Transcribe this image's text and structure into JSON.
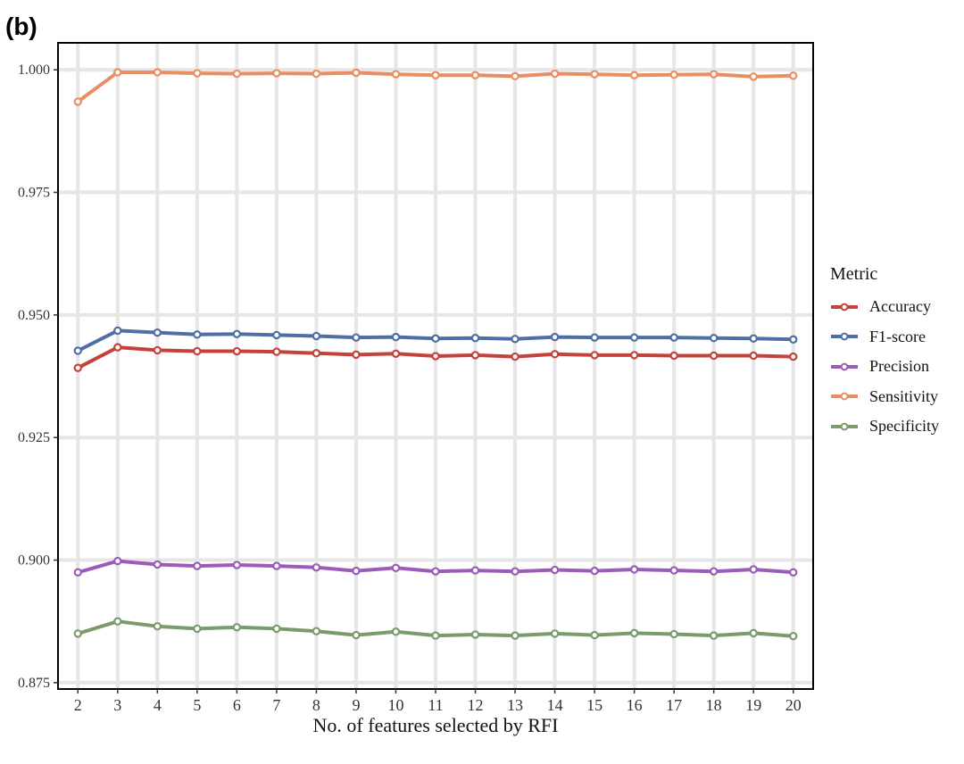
{
  "panel_label": "(b)",
  "chart_data": {
    "type": "line",
    "title": "",
    "xlabel": "No. of features selected by RFI",
    "ylabel": "",
    "x": [
      2,
      3,
      4,
      5,
      6,
      7,
      8,
      9,
      10,
      11,
      12,
      13,
      14,
      15,
      16,
      17,
      18,
      19,
      20
    ],
    "xlim": [
      1.5,
      20.5
    ],
    "ylim": [
      0.8737,
      1.0055
    ],
    "yticks": [
      0.875,
      0.9,
      0.925,
      0.95,
      0.975,
      1.0
    ],
    "ytick_labels": [
      "0.875",
      "0.900",
      "0.925",
      "0.950",
      "0.975",
      "1.000"
    ],
    "grid": true,
    "legend_position": "right",
    "legend_title": "Metric",
    "series": [
      {
        "name": "Accuracy",
        "color": "#C4423A",
        "values": [
          0.9392,
          0.9434,
          0.9428,
          0.9426,
          0.9426,
          0.9425,
          0.9422,
          0.9419,
          0.9421,
          0.9416,
          0.9418,
          0.9415,
          0.942,
          0.9418,
          0.9418,
          0.9417,
          0.9417,
          0.9417,
          0.9415
        ]
      },
      {
        "name": "F1-score",
        "color": "#4E6FA6",
        "values": [
          0.9427,
          0.9468,
          0.9464,
          0.946,
          0.9461,
          0.9459,
          0.9457,
          0.9454,
          0.9455,
          0.9452,
          0.9453,
          0.9451,
          0.9455,
          0.9454,
          0.9454,
          0.9454,
          0.9453,
          0.9452,
          0.945
        ]
      },
      {
        "name": "Precision",
        "color": "#9B5BB8",
        "values": [
          0.8975,
          0.8998,
          0.8991,
          0.8988,
          0.899,
          0.8988,
          0.8985,
          0.8978,
          0.8984,
          0.8977,
          0.8979,
          0.8977,
          0.898,
          0.8978,
          0.8981,
          0.8979,
          0.8977,
          0.8981,
          0.8975
        ]
      },
      {
        "name": "Sensitivity",
        "color": "#E98E63",
        "values": [
          0.9935,
          0.9995,
          0.9995,
          0.9993,
          0.9992,
          0.9993,
          0.9992,
          0.9994,
          0.9991,
          0.9989,
          0.9989,
          0.9987,
          0.9992,
          0.9991,
          0.9989,
          0.999,
          0.9991,
          0.9986,
          0.9988
        ]
      },
      {
        "name": "Specificity",
        "color": "#7A9B6C",
        "values": [
          0.885,
          0.8875,
          0.8865,
          0.886,
          0.8863,
          0.886,
          0.8855,
          0.8847,
          0.8854,
          0.8846,
          0.8848,
          0.8846,
          0.885,
          0.8847,
          0.8851,
          0.8849,
          0.8846,
          0.8851,
          0.8845
        ]
      }
    ]
  }
}
